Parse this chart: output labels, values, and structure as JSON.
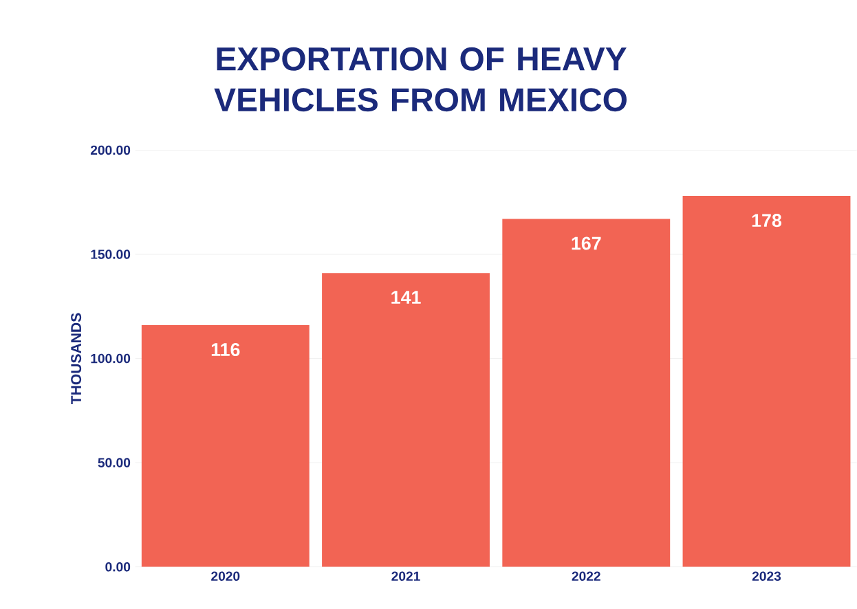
{
  "chart_data": {
    "type": "bar",
    "title": "EXPORTATION OF HEAVY VEHICLES FROM MEXICO",
    "ylabel": "THOUSANDS",
    "categories": [
      "2020",
      "2021",
      "2022",
      "2023"
    ],
    "values": [
      116,
      141,
      167,
      178
    ],
    "color": "#f26454",
    "ylim": [
      0,
      200
    ],
    "yticks": [
      {
        "value": 0,
        "label": "0.00"
      },
      {
        "value": 50,
        "label": "50.00"
      },
      {
        "value": 100,
        "label": "100.00"
      },
      {
        "value": 150,
        "label": "150.00"
      },
      {
        "value": 200,
        "label": "200.00"
      }
    ],
    "grid": "y",
    "data_labels": true
  }
}
